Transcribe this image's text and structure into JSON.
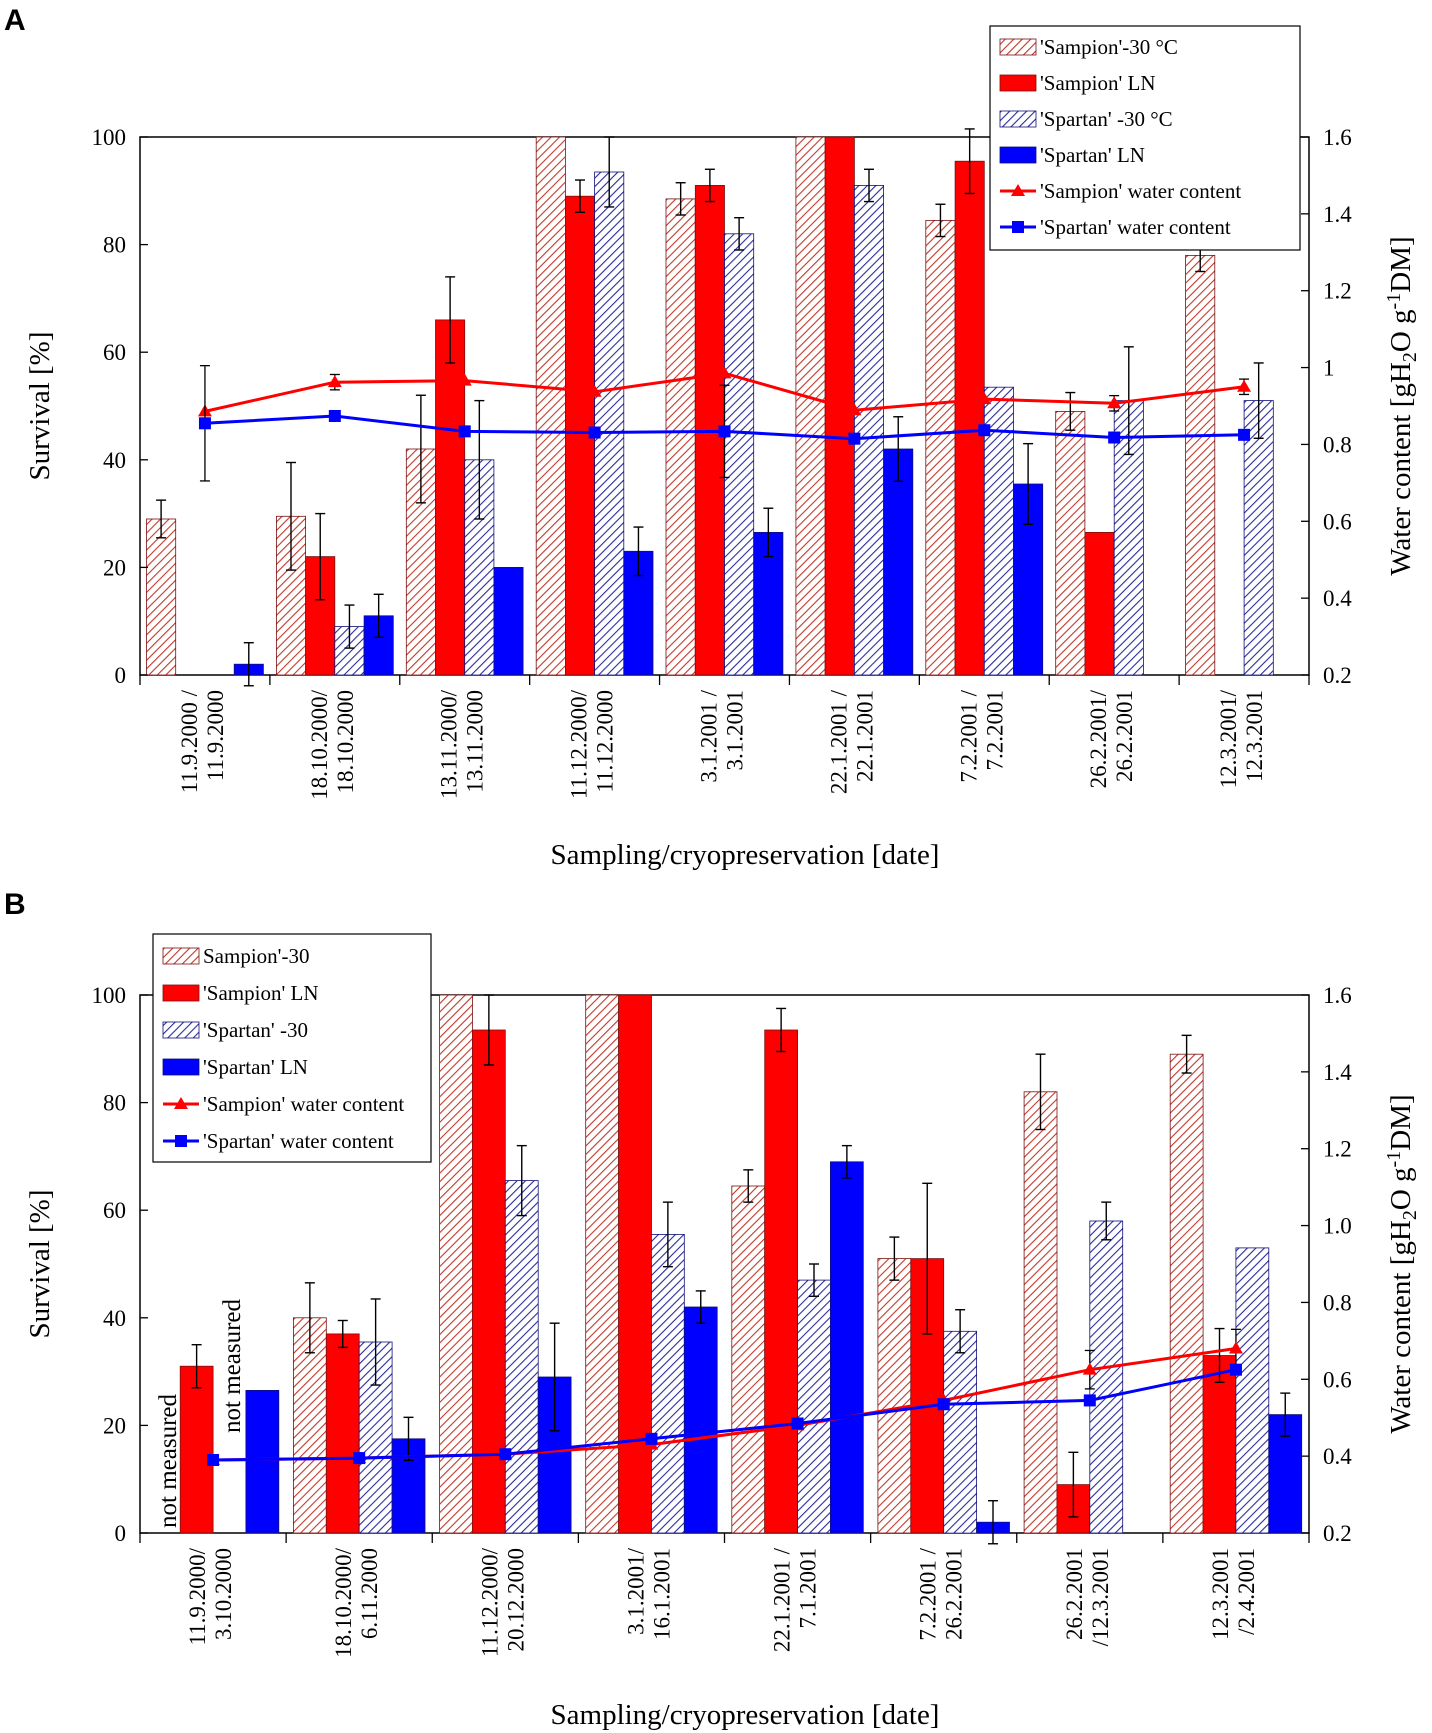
{
  "colors": {
    "sampion": "#ff0000",
    "sampion_hatch": "#cc3333",
    "spartan": "#0000ff",
    "spartan_hatch": "#3333aa",
    "sampion_line": "#ff0000",
    "spartan_line": "#0000ff"
  },
  "chart_data": [
    {
      "panel": "A",
      "type": "bar",
      "xlabel": "Sampling/cryopreservation [date]",
      "ylabel": "Survival [%]",
      "y2label": "Water content [gH₂O g⁻¹DM]",
      "ylim": [
        0,
        100
      ],
      "y2lim": [
        0.2,
        1.6
      ],
      "yticks": [
        "0",
        "20",
        "40",
        "60",
        "80",
        "100"
      ],
      "y2ticks": [
        "0.2",
        "0.4",
        "0.6",
        "0.8",
        "1",
        "1.2",
        "1.4",
        "1.6"
      ],
      "legend_position": "top-right",
      "categories": [
        [
          "11.9.2000 /",
          "11.9.2000"
        ],
        [
          "18.10.2000/",
          "18.10.2000"
        ],
        [
          "13.11.2000/",
          "13.11.2000"
        ],
        [
          "11.12.2000/",
          "11.12.2000"
        ],
        [
          "3.1.2001 /",
          "3.1.2001"
        ],
        [
          "22.1.2001 /",
          "22.1.2001"
        ],
        [
          "7.2.2001 /",
          "7.2.2001"
        ],
        [
          "26.2.2001/",
          "26.2.2001"
        ],
        [
          "12.3.2001/",
          "12.3.2001"
        ]
      ],
      "series": [
        {
          "name": "'Sampion'-30 °C",
          "kind": "bar",
          "style": "hatch",
          "color": "sampion",
          "values": [
            29,
            29.5,
            42,
            100,
            88.5,
            100,
            84.5,
            49,
            78
          ],
          "errors": [
            3.5,
            10,
            10,
            0,
            3,
            0,
            3,
            3.5,
            3
          ]
        },
        {
          "name": "'Sampion' LN",
          "kind": "bar",
          "style": "solid",
          "color": "sampion",
          "values": [
            null,
            22,
            66,
            89,
            91,
            100,
            95.5,
            26.5,
            null
          ],
          "errors": [
            0,
            8,
            8,
            3,
            3,
            0,
            6,
            0,
            0
          ]
        },
        {
          "name": "'Spartan' -30 °C",
          "kind": "bar",
          "style": "hatch",
          "color": "spartan",
          "values": [
            null,
            9,
            40,
            93.5,
            82,
            91,
            53.5,
            51,
            51
          ],
          "errors": [
            0,
            4,
            11,
            6.5,
            3,
            3,
            0,
            10,
            7
          ]
        },
        {
          "name": "'Spartan' LN",
          "kind": "bar",
          "style": "solid",
          "color": "spartan",
          "values": [
            2,
            11,
            20,
            23,
            26.5,
            42,
            35.5,
            null,
            null
          ],
          "errors": [
            4,
            4,
            0,
            4.5,
            4.5,
            6,
            7.5,
            0,
            0
          ]
        },
        {
          "name": "'Sampion' water content",
          "kind": "line",
          "marker": "triangle",
          "color": "sampion_line",
          "values": [
            0.886,
            0.962,
            0.966,
            0.937,
            0.985,
            0.889,
            0.918,
            0.907,
            0.95
          ],
          "errors": [
            0,
            0.02,
            0,
            0,
            0,
            0,
            0,
            0.02,
            0.02
          ]
        },
        {
          "name": "'Spartan' water content",
          "kind": "line",
          "marker": "square",
          "color": "spartan_line",
          "values": [
            0.855,
            0.874,
            0.834,
            0.831,
            0.834,
            0.815,
            0.837,
            0.818,
            0.825
          ],
          "errors": [
            0.15,
            0,
            0,
            0,
            0.12,
            0,
            0,
            0,
            0
          ]
        }
      ]
    },
    {
      "panel": "B",
      "type": "bar",
      "xlabel": "Sampling/cryopreservation [date]",
      "ylabel": "Survival [%]",
      "y2label": "Water content [gH₂O g⁻¹DM]",
      "ylim": [
        0,
        100
      ],
      "y2lim": [
        0.2,
        1.6
      ],
      "yticks": [
        "0",
        "20",
        "40",
        "60",
        "80",
        "100"
      ],
      "y2ticks": [
        "0.2",
        "0.4",
        "0.6",
        "0.8",
        "1.0",
        "1.2",
        "1.4",
        "1.6"
      ],
      "legend_position": "top-left",
      "annotations": [
        "not measured",
        "not measured"
      ],
      "categories": [
        [
          "11.9.2000/",
          "3.10.2000"
        ],
        [
          "18.10.2000/",
          "6.11.2000"
        ],
        [
          "11.12.2000/",
          "20.12.2000"
        ],
        [
          "3.1.2001/",
          "16.1.2001"
        ],
        [
          "22.1.2001 /",
          "7.1.2001"
        ],
        [
          "7.2.2001 /",
          "26.2.2001"
        ],
        [
          "26.2.2001",
          "/12.3.2001"
        ],
        [
          "12.3.2001",
          "/2.4.2001"
        ]
      ],
      "series": [
        {
          "name": "Sampion'-30",
          "kind": "bar",
          "style": "hatch",
          "color": "sampion",
          "values": [
            null,
            40,
            100,
            100,
            64.5,
            51,
            82,
            89
          ],
          "errors": [
            0,
            6.5,
            0,
            0,
            3,
            4,
            7,
            3.5
          ]
        },
        {
          "name": "'Sampion' LN",
          "kind": "bar",
          "style": "solid",
          "color": "sampion",
          "values": [
            31,
            37,
            93.5,
            100,
            93.5,
            51,
            9,
            33
          ],
          "errors": [
            4,
            2.5,
            6.5,
            0,
            4,
            14,
            6,
            5
          ]
        },
        {
          "name": "'Spartan' -30",
          "kind": "bar",
          "style": "hatch",
          "color": "spartan",
          "values": [
            null,
            35.5,
            65.5,
            55.5,
            47,
            37.5,
            58,
            53
          ],
          "errors": [
            0,
            8,
            6.5,
            6,
            3,
            4,
            3.5,
            0
          ]
        },
        {
          "name": "'Spartan' LN",
          "kind": "bar",
          "style": "solid",
          "color": "spartan",
          "values": [
            26.5,
            17.5,
            29,
            42,
            69,
            2,
            null,
            22
          ],
          "errors": [
            0,
            4,
            10,
            3,
            3,
            4,
            0,
            4
          ]
        },
        {
          "name": "'Sampion' water content",
          "kind": "line",
          "marker": "triangle",
          "color": "sampion_line",
          "values": [
            0.39,
            0.395,
            0.405,
            0.43,
            0.48,
            0.545,
            0.625,
            0.68
          ],
          "errors": [
            0,
            0,
            0,
            0,
            0,
            0,
            0.05,
            0.05
          ]
        },
        {
          "name": "'Spartan' water content",
          "kind": "line",
          "marker": "square",
          "color": "spartan_line",
          "values": [
            0.39,
            0.395,
            0.405,
            0.445,
            0.485,
            0.535,
            0.545,
            0.625
          ],
          "errors": [
            0,
            0,
            0,
            0,
            0,
            0,
            0,
            0
          ]
        }
      ]
    }
  ]
}
